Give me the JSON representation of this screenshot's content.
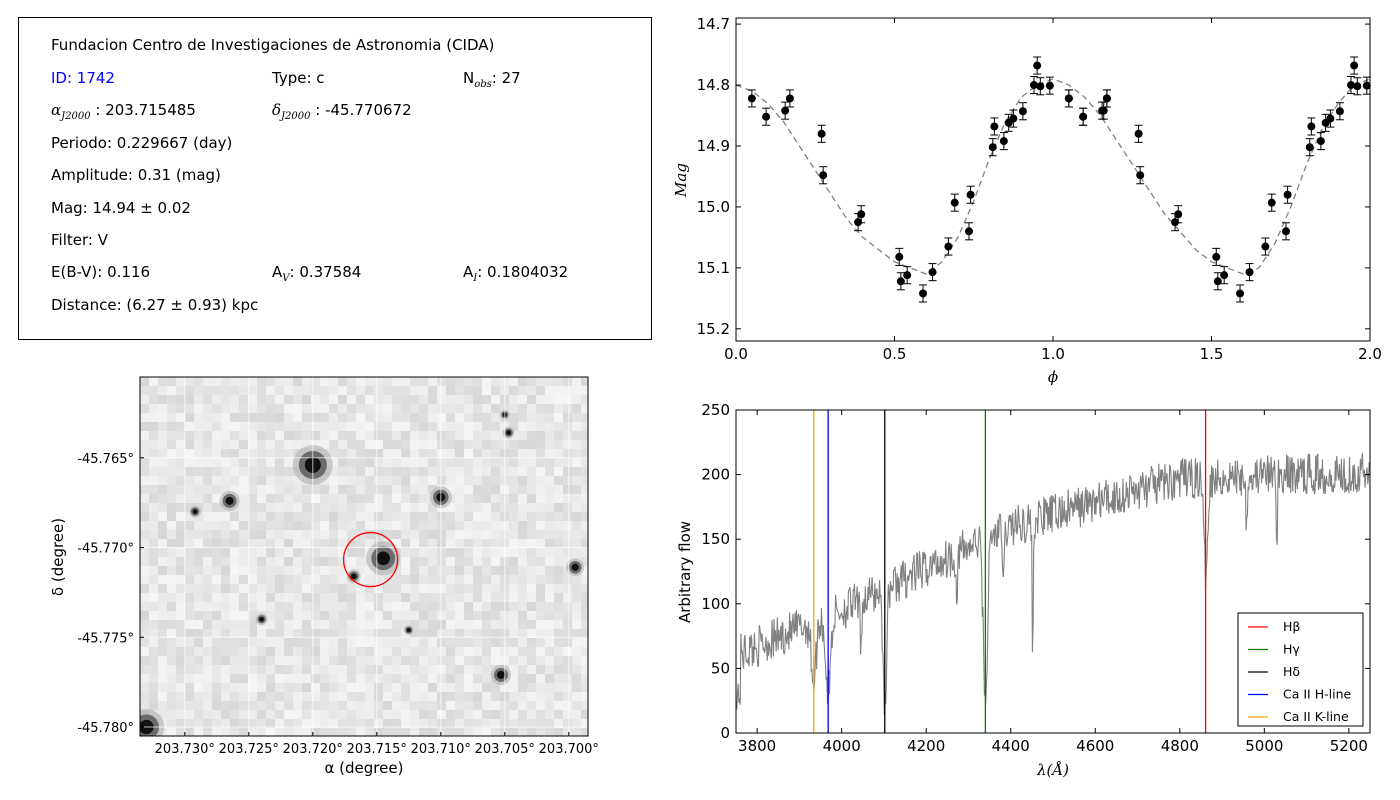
{
  "info": {
    "org": "Fundacion Centro de Investigaciones de Astronomia (CIDA)",
    "id_label": "ID: 1742",
    "type_label": "Type: c",
    "nobs_prefix": "N",
    "nobs_sub": "obs",
    "nobs_value": ": 27",
    "alpha_symbol": "α",
    "alpha_sub": "J2000",
    "alpha_value": " : 203.715485",
    "delta_symbol": "δ",
    "delta_sub": "J2000",
    "delta_value": " : -45.770672",
    "period": "Periodo: 0.229667 (day)",
    "amplitude": "Amplitude: 0.31 (mag)",
    "mag": "Mag: 14.94 ± 0.02",
    "filter": "Filter: V",
    "ebv": "E(B-V): 0.116",
    "av_prefix": "A",
    "av_sub": "V",
    "av_value": ": 0.37584",
    "ai_prefix": "A",
    "ai_sub": "I",
    "ai_value": ": 0.1804032",
    "distance": "Distance: (6.27 ± 0.93) kpc",
    "id_color": "#0000ff"
  },
  "chart_data": [
    {
      "type": "scatter",
      "name": "light-curve",
      "xlabel": "ϕ",
      "ylabel": "Mag",
      "xlim": [
        0.0,
        2.0
      ],
      "ylim": [
        15.22,
        14.69
      ],
      "y_inverted": true,
      "xticks": [
        "0.0",
        "0.5",
        "1.0",
        "1.5",
        "2.0"
      ],
      "yticks": [
        "14.7",
        "14.8",
        "14.9",
        "15.0",
        "15.1",
        "15.2"
      ],
      "points": {
        "phase": [
          0.05,
          0.095,
          0.155,
          0.17,
          0.27,
          0.275,
          0.385,
          0.395,
          0.515,
          0.52,
          0.54,
          0.59,
          0.62,
          0.67,
          0.69,
          0.735,
          0.74,
          0.81,
          0.815,
          0.845,
          0.86,
          0.875,
          0.905,
          0.94,
          0.95,
          0.96,
          0.99,
          1.05,
          1.095,
          1.16,
          1.17
        ],
        "mag": [
          14.822,
          14.852,
          14.842,
          14.822,
          14.88,
          14.948,
          15.025,
          15.012,
          15.082,
          15.122,
          15.112,
          15.142,
          15.107,
          15.065,
          14.993,
          15.04,
          14.98,
          14.902,
          14.868,
          14.892,
          14.862,
          14.855,
          14.843,
          14.8,
          14.768,
          14.802,
          14.801,
          14.822,
          14.852,
          14.842,
          14.822
        ],
        "err": 0.014
      },
      "model": {
        "phase": [
          0.0,
          0.05,
          0.1,
          0.15,
          0.2,
          0.25,
          0.3,
          0.35,
          0.4,
          0.45,
          0.5,
          0.55,
          0.6,
          0.65,
          0.7,
          0.75,
          0.8,
          0.85,
          0.9,
          0.95,
          1.0,
          1.05,
          1.1,
          1.15,
          1.2,
          1.25,
          1.3,
          1.35,
          1.4,
          1.45,
          1.5,
          1.55,
          1.6,
          1.65,
          1.7,
          1.75,
          1.8,
          1.85,
          1.9,
          1.95,
          2.0
        ],
        "mag": [
          14.8,
          14.81,
          14.83,
          14.86,
          14.9,
          14.94,
          14.98,
          15.02,
          15.05,
          15.07,
          15.09,
          15.1,
          15.11,
          15.09,
          15.05,
          14.99,
          14.92,
          14.86,
          14.82,
          14.8,
          14.79,
          14.8,
          14.82,
          14.85,
          14.89,
          14.93,
          14.97,
          15.01,
          15.04,
          15.07,
          15.09,
          15.1,
          15.11,
          15.1,
          15.06,
          15.0,
          14.93,
          14.87,
          14.83,
          14.8,
          14.79
        ]
      },
      "model_color": "#808080"
    },
    {
      "type": "heatmap",
      "name": "sky-image",
      "xlabel": "α (degree)",
      "ylabel": "δ (degree)",
      "xlim": [
        203.7335,
        203.6985
      ],
      "ylim": [
        -45.7805,
        -45.7605
      ],
      "xticks": [
        "203.730°",
        "203.725°",
        "203.720°",
        "203.715°",
        "203.710°",
        "203.705°",
        "203.700°"
      ],
      "yticks": [
        "-45.765°",
        "-45.770°",
        "-45.775°",
        "-45.780°"
      ],
      "target": {
        "ra": 203.715485,
        "dec": -45.770672
      },
      "target_color": "#ff0000"
    },
    {
      "type": "line",
      "name": "spectrum",
      "xlabel": "λ(Å)",
      "ylabel": "Arbitrary flow",
      "xlim": [
        3750,
        5250
      ],
      "ylim": [
        0,
        250
      ],
      "xticks": [
        "3800",
        "4000",
        "4200",
        "4400",
        "4600",
        "4800",
        "5000",
        "5200"
      ],
      "yticks": [
        "0",
        "50",
        "100",
        "150",
        "200",
        "250"
      ],
      "spectrum_color": "#808080",
      "lines": [
        {
          "name": "Hβ",
          "x": 4861,
          "color": "#ff0000"
        },
        {
          "name": "Hγ",
          "x": 4340,
          "color": "#008000"
        },
        {
          "name": "Hδ",
          "x": 4102,
          "color": "#000000"
        },
        {
          "name": "Ca II H-line",
          "x": 3968,
          "color": "#0000ff"
        },
        {
          "name": "Ca II K-line",
          "x": 3934,
          "color": "#ffa500"
        }
      ],
      "legend_position": "lower-right"
    }
  ]
}
